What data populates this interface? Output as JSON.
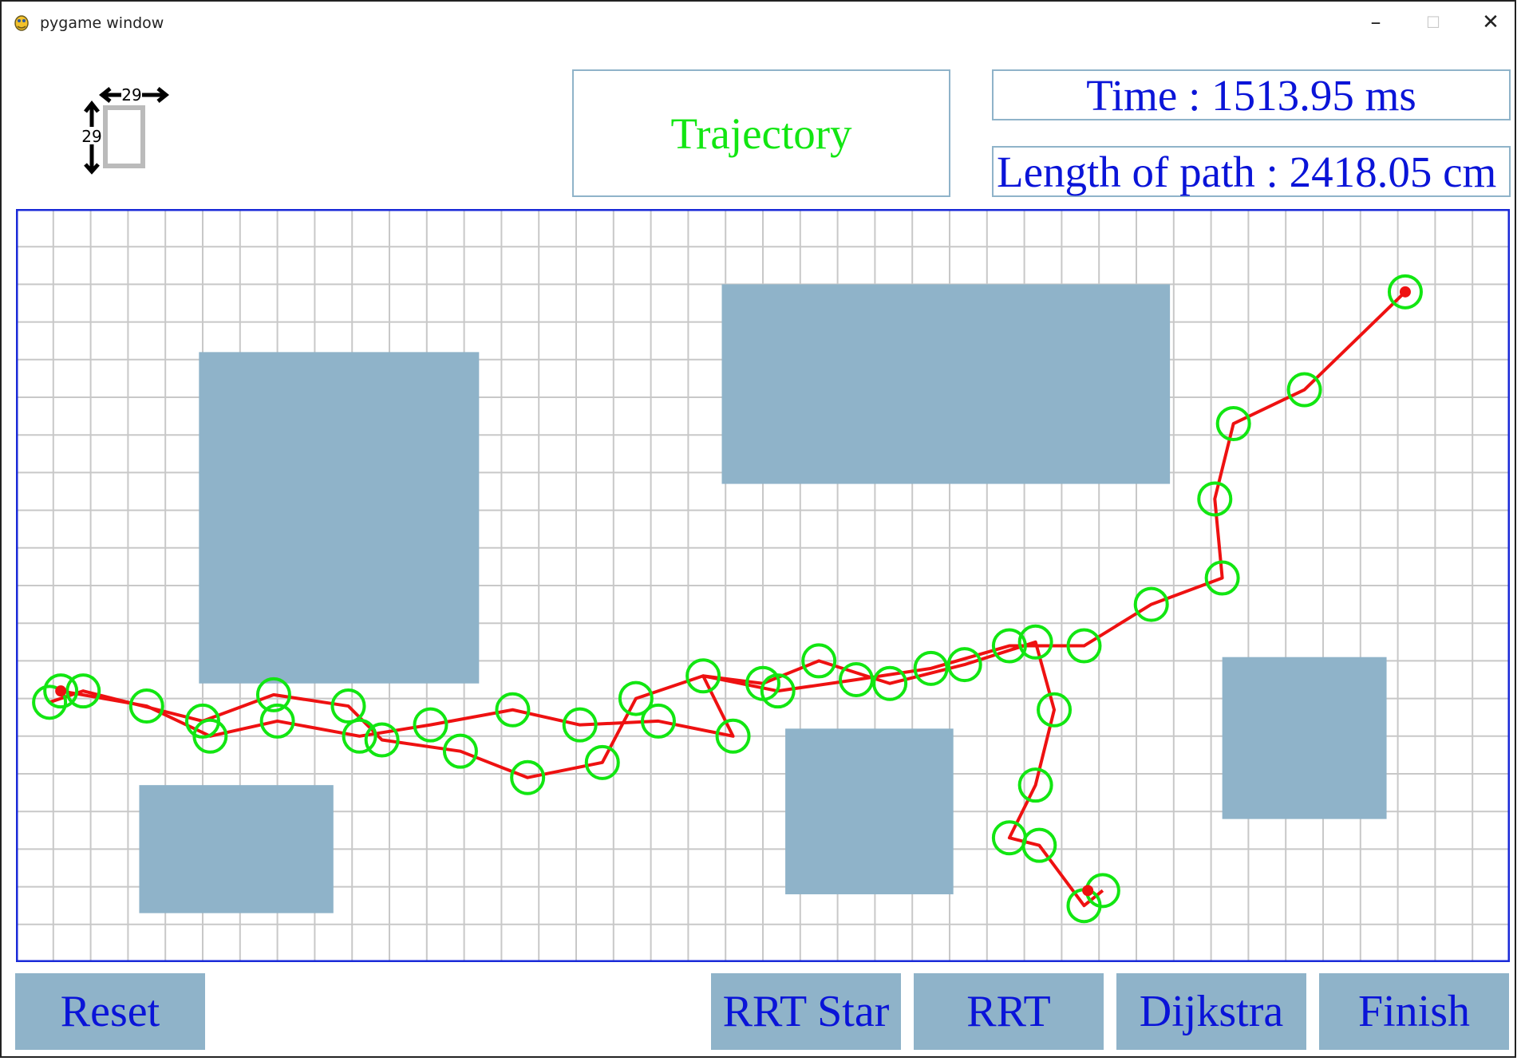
{
  "window": {
    "title": "pygame window",
    "controls": {
      "minimize": "–",
      "maximize": "☐",
      "close": "✕"
    }
  },
  "cell_size_indicator": {
    "width_label": "29",
    "height_label": "29"
  },
  "header": {
    "mode_label": "Trajectory",
    "time_label": "Time : 1513.95 ms",
    "length_label": "Length of path : 2418.05 cm"
  },
  "buttons": {
    "reset": "Reset",
    "rrt_star": "RRT Star",
    "rrt": "RRT",
    "dijkstra": "Dijkstra",
    "finish": "Finish"
  },
  "colors": {
    "obstacle": "#8fb3c9",
    "grid_line": "#c8c8c8",
    "grid_border": "#1a2ad8",
    "node_ring": "#12e612",
    "path": "#ee1111",
    "accent_text": "#0a14d8",
    "mode_text": "#12e612"
  },
  "grid": {
    "columns": 40,
    "rows": 20
  },
  "obstacles": [
    {
      "col": 4.9,
      "row": 3.8,
      "cols": 7.5,
      "rows": 8.8
    },
    {
      "col": 18.9,
      "row": 2.0,
      "cols": 12.0,
      "rows": 5.3
    },
    {
      "col": 3.3,
      "row": 15.3,
      "cols": 5.2,
      "rows": 3.4
    },
    {
      "col": 20.6,
      "row": 13.8,
      "cols": 4.5,
      "rows": 4.4
    },
    {
      "col": 32.3,
      "row": 11.9,
      "cols": 4.4,
      "rows": 4.3
    }
  ],
  "start_node": {
    "col": 1.2,
    "row": 12.8
  },
  "goal_node": {
    "col": 37.2,
    "row": 2.2
  },
  "end_node": {
    "col": 28.7,
    "row": 18.1
  },
  "nodes": [
    [
      0.9,
      13.1
    ],
    [
      1.2,
      12.8
    ],
    [
      1.8,
      12.8
    ],
    [
      3.5,
      13.2
    ],
    [
      5.0,
      13.6
    ],
    [
      5.2,
      14.0
    ],
    [
      6.9,
      12.9
    ],
    [
      7.0,
      13.6
    ],
    [
      8.9,
      13.2
    ],
    [
      9.2,
      14.0
    ],
    [
      9.8,
      14.1
    ],
    [
      11.1,
      13.7
    ],
    [
      11.9,
      14.4
    ],
    [
      13.3,
      13.3
    ],
    [
      13.7,
      15.1
    ],
    [
      15.1,
      13.7
    ],
    [
      15.7,
      14.7
    ],
    [
      16.6,
      13.0
    ],
    [
      17.2,
      13.6
    ],
    [
      18.4,
      12.4
    ],
    [
      19.2,
      14.0
    ],
    [
      20.0,
      12.6
    ],
    [
      20.4,
      12.8
    ],
    [
      21.5,
      12.0
    ],
    [
      22.5,
      12.5
    ],
    [
      23.4,
      12.6
    ],
    [
      24.5,
      12.2
    ],
    [
      25.4,
      12.1
    ],
    [
      26.6,
      11.6
    ],
    [
      27.3,
      11.5
    ],
    [
      28.6,
      11.6
    ],
    [
      27.8,
      13.3
    ],
    [
      27.3,
      15.3
    ],
    [
      26.6,
      16.7
    ],
    [
      27.4,
      16.9
    ],
    [
      28.6,
      18.5
    ],
    [
      29.1,
      18.1
    ],
    [
      30.4,
      10.5
    ],
    [
      32.3,
      9.8
    ],
    [
      32.1,
      7.7
    ],
    [
      32.6,
      5.7
    ],
    [
      34.5,
      4.8
    ],
    [
      37.2,
      2.2
    ]
  ],
  "path_segments": [
    [
      [
        1.2,
        12.8
      ],
      [
        3.5,
        13.2
      ],
      [
        5.2,
        14.0
      ],
      [
        7.0,
        13.6
      ],
      [
        9.2,
        14.0
      ],
      [
        11.1,
        13.7
      ],
      [
        13.3,
        13.3
      ],
      [
        15.1,
        13.7
      ],
      [
        17.2,
        13.6
      ],
      [
        19.2,
        14.0
      ],
      [
        18.4,
        12.4
      ],
      [
        20.4,
        12.8
      ],
      [
        22.5,
        12.5
      ],
      [
        24.5,
        12.2
      ],
      [
        26.6,
        11.6
      ],
      [
        28.6,
        11.6
      ],
      [
        30.4,
        10.5
      ],
      [
        32.3,
        9.8
      ],
      [
        32.1,
        7.7
      ],
      [
        32.6,
        5.7
      ],
      [
        34.5,
        4.8
      ],
      [
        37.2,
        2.2
      ]
    ],
    [
      [
        0.9,
        13.1
      ],
      [
        1.8,
        12.8
      ],
      [
        5.0,
        13.6
      ],
      [
        6.9,
        12.9
      ],
      [
        8.9,
        13.2
      ],
      [
        9.8,
        14.1
      ],
      [
        11.9,
        14.4
      ],
      [
        13.7,
        15.1
      ],
      [
        15.7,
        14.7
      ],
      [
        16.6,
        13.0
      ],
      [
        18.4,
        12.4
      ],
      [
        20.0,
        12.6
      ],
      [
        21.5,
        12.0
      ],
      [
        23.4,
        12.6
      ],
      [
        25.4,
        12.1
      ],
      [
        27.3,
        11.5
      ],
      [
        27.8,
        13.3
      ],
      [
        27.3,
        15.3
      ],
      [
        26.6,
        16.7
      ],
      [
        27.4,
        16.9
      ],
      [
        28.6,
        18.5
      ],
      [
        29.1,
        18.1
      ]
    ]
  ]
}
